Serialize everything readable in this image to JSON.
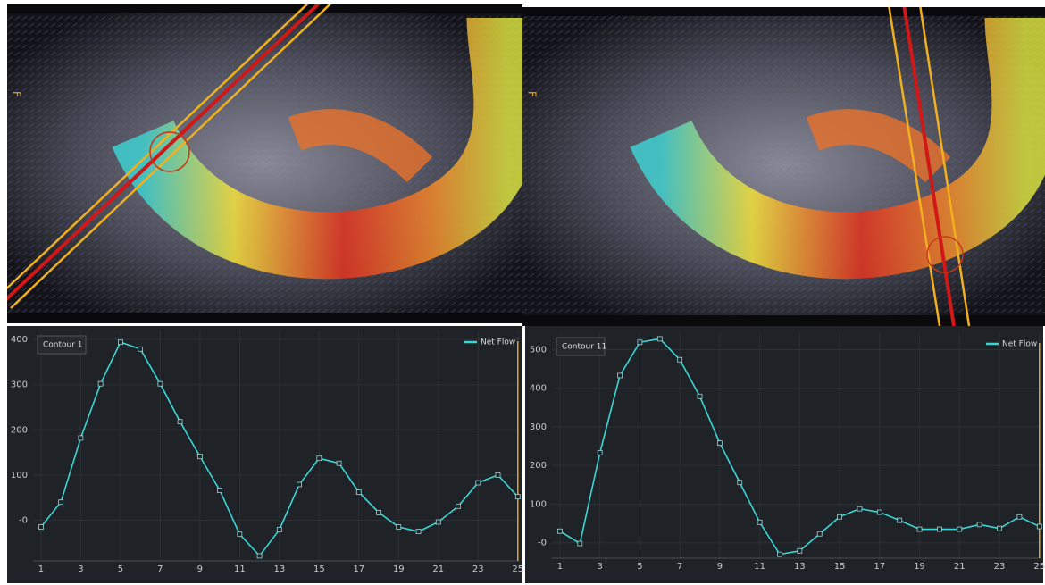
{
  "images": [
    {
      "orientation": "F"
    },
    {
      "orientation": "F"
    }
  ],
  "chart_data": [
    {
      "type": "line",
      "annotation": "Contour 1",
      "x": [
        1,
        2,
        3,
        4,
        5,
        6,
        7,
        8,
        9,
        10,
        11,
        12,
        13,
        14,
        15,
        16,
        17,
        18,
        19,
        20,
        21,
        22,
        23,
        24,
        25
      ],
      "series": [
        {
          "name": "Net Flow",
          "color": "#3ad6d6",
          "values": [
            -15,
            40,
            182,
            302,
            394,
            379,
            302,
            218,
            141,
            66,
            -31,
            -79,
            -21,
            79,
            137,
            126,
            62,
            17,
            -15,
            -25,
            -4,
            31,
            83,
            100,
            52
          ]
        }
      ],
      "xlim": [
        0.6,
        25.1
      ],
      "xticks": [
        1,
        3,
        5,
        7,
        9,
        11,
        13,
        15,
        17,
        19,
        21,
        23,
        25
      ],
      "ylim": [
        -90,
        420
      ],
      "yticks": [
        {
          "value": 0,
          "label": "-0"
        },
        100,
        200,
        300,
        400
      ],
      "cursor_x": 25,
      "grid": true,
      "legend": "top-right"
    },
    {
      "type": "line",
      "annotation": "Contour 11",
      "x": [
        1,
        2,
        3,
        4,
        5,
        6,
        7,
        8,
        9,
        10,
        11,
        12,
        13,
        14,
        15,
        16,
        17,
        18,
        19,
        20,
        21,
        22,
        23,
        24,
        25
      ],
      "series": [
        {
          "name": "Net Flow",
          "color": "#3ad6d6",
          "values": [
            30,
            -2,
            233,
            433,
            519,
            528,
            474,
            379,
            258,
            156,
            53,
            -30,
            -21,
            23,
            67,
            88,
            79,
            58,
            35,
            35,
            35,
            47,
            37,
            67,
            42
          ]
        }
      ],
      "xlim": [
        0.6,
        25.1
      ],
      "xticks": [
        1,
        3,
        5,
        7,
        9,
        11,
        13,
        15,
        17,
        19,
        21,
        23,
        25
      ],
      "ylim": [
        -40,
        545
      ],
      "yticks": [
        {
          "value": 0,
          "label": "-0"
        },
        100,
        200,
        300,
        400,
        500
      ],
      "cursor_x": 25,
      "grid": true,
      "legend": "top-right"
    }
  ]
}
